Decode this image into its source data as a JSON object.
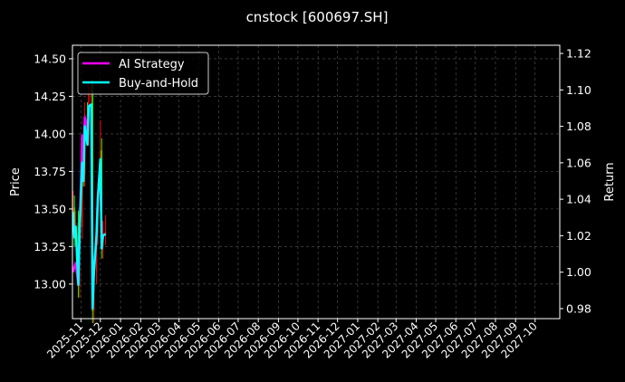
{
  "chart_data": {
    "type": "line",
    "title": "cnstock [600697.SH]",
    "ylabel_left": "Price",
    "ylabel_right": "Return",
    "xlim": [
      "2025-10-19",
      "2027-11-08"
    ],
    "ylim_left": [
      12.77,
      14.59
    ],
    "ylim_right": [
      0.9745,
      1.1245
    ],
    "grid": true,
    "legend_position": "top-left",
    "x_ticks": [
      "2025-11",
      "2025-12",
      "2026-01",
      "2026-02",
      "2026-03",
      "2026-04",
      "2026-05",
      "2026-06",
      "2026-07",
      "2026-08",
      "2026-09",
      "2026-10",
      "2026-11",
      "2026-12",
      "2027-01",
      "2027-02",
      "2027-03",
      "2027-04",
      "2027-05",
      "2027-06",
      "2027-07",
      "2027-08",
      "2027-09",
      "2027-10"
    ],
    "y_ticks_left": [
      "13.00",
      "13.25",
      "13.50",
      "13.75",
      "14.00",
      "14.25",
      "14.50"
    ],
    "y_ticks_right": [
      "0.98",
      "1.00",
      "1.02",
      "1.04",
      "1.06",
      "1.08",
      "1.10",
      "1.12"
    ],
    "dates": [
      "2025-10-20",
      "2025-10-22",
      "2025-10-24",
      "2025-10-28",
      "2025-10-30",
      "2025-11-03",
      "2025-11-05",
      "2025-11-07",
      "2025-11-11",
      "2025-11-13",
      "2025-11-17",
      "2025-11-19",
      "2025-11-21",
      "2025-11-25",
      "2025-11-27",
      "2025-12-01",
      "2025-12-03",
      "2025-12-05",
      "2025-12-09"
    ],
    "candles": {
      "open": [
        13.45,
        13.51,
        13.33,
        13.41,
        12.99,
        13.38,
        13.86,
        13.73,
        14.13,
        14.0,
        14.27,
        14.28,
        12.82,
        13.08,
        13.34,
        13.6,
        13.89,
        13.25,
        13.34
      ],
      "high": [
        13.62,
        13.59,
        13.49,
        13.49,
        13.46,
        13.94,
        13.94,
        14.21,
        14.21,
        14.35,
        14.36,
        14.36,
        13.16,
        13.42,
        13.68,
        14.09,
        13.97,
        13.42,
        13.46
      ],
      "low": [
        13.37,
        13.25,
        13.25,
        12.91,
        12.91,
        13.3,
        13.65,
        13.65,
        13.92,
        13.92,
        14.19,
        12.74,
        12.74,
        13.0,
        13.26,
        13.52,
        13.17,
        13.17,
        13.26
      ],
      "close": [
        13.51,
        13.33,
        13.41,
        12.99,
        13.38,
        13.86,
        13.73,
        14.13,
        14.0,
        14.27,
        14.28,
        12.82,
        13.08,
        13.34,
        13.6,
        13.89,
        13.25,
        13.34,
        13.35
      ]
    },
    "series": [
      {
        "name": "AI Strategy",
        "color": "#ff00ff",
        "values": [
          1.0,
          1.003,
          1.005,
          0.993,
          1.023,
          1.075,
          1.065,
          1.085,
          1.078,
          1.091,
          1.092,
          0.98,
          1.0,
          1.02,
          1.04,
          1.062,
          1.013,
          1.02,
          1.021
        ]
      },
      {
        "name": "Buy-and-Hold",
        "color": "#00ffff",
        "values": [
          1.033,
          1.019,
          1.025,
          0.993,
          1.023,
          1.06,
          1.05,
          1.08,
          1.07,
          1.091,
          1.092,
          0.98,
          1.0,
          1.02,
          1.04,
          1.062,
          1.013,
          1.02,
          1.021
        ]
      }
    ],
    "candle_up_color": "#ff0000",
    "candle_down_color": "#00ff00"
  }
}
